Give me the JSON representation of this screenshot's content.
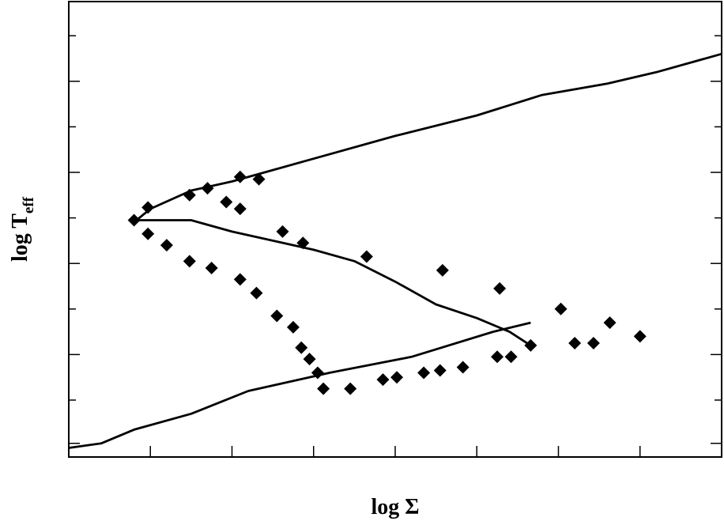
{
  "chart_data": {
    "type": "scatter",
    "title": "",
    "xlabel": "log Σ",
    "ylabel_main": "log T",
    "ylabel_sub": "eff",
    "xlim": [
      0,
      8
    ],
    "ylim": [
      0,
      10
    ],
    "grid": false,
    "legend": "none",
    "tick_labels": "none",
    "x_ticks": [
      1,
      2,
      3,
      4,
      5,
      6,
      7
    ],
    "y_ticks": [
      0.3,
      1.25,
      2.25,
      3.25,
      4.25,
      5.25,
      6.25,
      7.25,
      8.25,
      9.25
    ],
    "marker": "diamond",
    "colors": {
      "line": "#000000",
      "marker": "#000000"
    },
    "series": [
      {
        "kind": "line",
        "x": [
          0.0,
          0.4,
          0.8,
          1.5,
          2.2,
          3.2,
          4.2,
          5.2,
          5.66
        ],
        "y": [
          0.2,
          0.3,
          0.6,
          0.95,
          1.45,
          1.85,
          2.2,
          2.75,
          2.95
        ]
      },
      {
        "kind": "line",
        "x": [
          0.83,
          1.0,
          1.5,
          2.0,
          2.5,
          3.0,
          4.0,
          5.0,
          5.8,
          6.6,
          7.2,
          8.0
        ],
        "y": [
          5.2,
          5.45,
          5.85,
          6.05,
          6.3,
          6.55,
          7.05,
          7.5,
          7.95,
          8.2,
          8.45,
          8.85
        ]
      },
      {
        "kind": "line",
        "x": [
          0.83,
          1.5,
          2.0,
          3.0,
          3.5,
          4.0,
          4.5,
          5.0,
          5.4,
          5.66
        ],
        "y": [
          5.2,
          5.2,
          4.95,
          4.55,
          4.3,
          3.85,
          3.35,
          3.05,
          2.75,
          2.45
        ]
      },
      {
        "kind": "points",
        "x": [
          0.8,
          0.97,
          1.48,
          1.7,
          2.1,
          2.33,
          1.93,
          2.1,
          2.62,
          2.87,
          0.97,
          1.2,
          1.48,
          1.75,
          2.1,
          2.3,
          2.55,
          2.75,
          2.85,
          2.95,
          3.05,
          3.12,
          3.45,
          3.85,
          4.02,
          4.35,
          4.55,
          4.83,
          5.25,
          5.42,
          5.66,
          3.65,
          4.58,
          5.28,
          6.03,
          6.2,
          6.43,
          6.63,
          7.0
        ],
        "y": [
          5.2,
          5.48,
          5.75,
          5.9,
          6.15,
          6.1,
          5.6,
          5.45,
          4.95,
          4.7,
          4.9,
          4.65,
          4.3,
          4.15,
          3.9,
          3.6,
          3.1,
          2.85,
          2.4,
          2.15,
          1.85,
          1.5,
          1.5,
          1.7,
          1.75,
          1.85,
          1.9,
          1.97,
          2.2,
          2.2,
          2.45,
          4.4,
          4.1,
          3.7,
          3.25,
          2.5,
          2.5,
          2.95,
          2.65
        ]
      }
    ]
  }
}
